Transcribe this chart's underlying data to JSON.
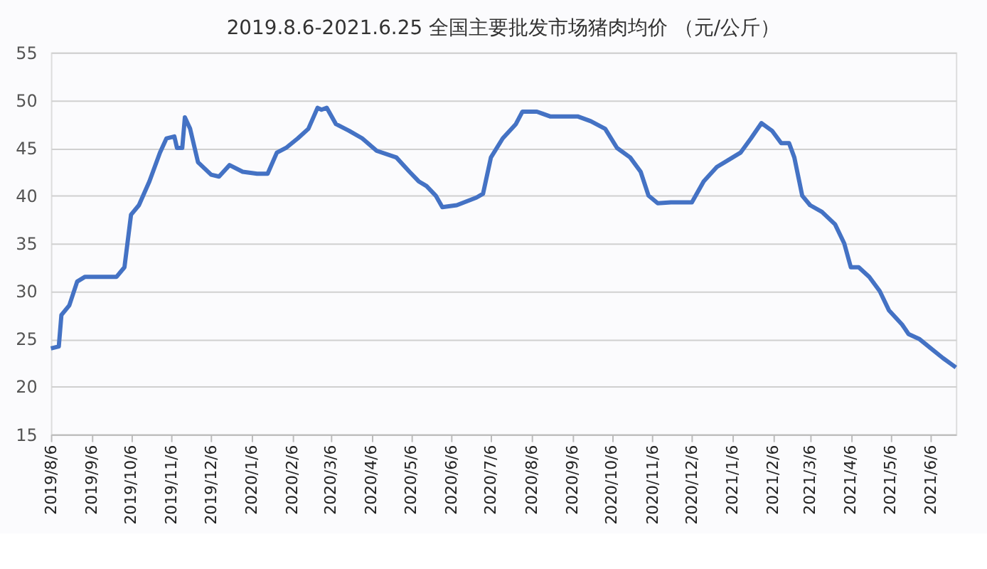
{
  "chart_data": {
    "type": "line",
    "title": "2019.8.6-2021.6.25 全国主要批发市场猪肉均价 （元/公斤）",
    "x": [
      "2019-08-06",
      "2019-08-12",
      "2019-08-14",
      "2019-08-20",
      "2019-08-26",
      "2019-09-01",
      "2019-09-25",
      "2019-10-01",
      "2019-10-06",
      "2019-10-12",
      "2019-10-20",
      "2019-10-28",
      "2019-11-02",
      "2019-11-08",
      "2019-11-10",
      "2019-11-14",
      "2019-11-16",
      "2019-11-20",
      "2019-11-26",
      "2019-12-06",
      "2019-12-12",
      "2019-12-20",
      "2019-12-30",
      "2020-01-10",
      "2020-01-18",
      "2020-01-25",
      "2020-02-01",
      "2020-02-10",
      "2020-02-18",
      "2020-02-25",
      "2020-02-28",
      "2020-03-03",
      "2020-03-10",
      "2020-03-20",
      "2020-03-30",
      "2020-04-10",
      "2020-04-25",
      "2020-05-05",
      "2020-05-12",
      "2020-05-18",
      "2020-05-25",
      "2020-05-30",
      "2020-06-10",
      "2020-06-25",
      "2020-06-30",
      "2020-07-06",
      "2020-07-15",
      "2020-07-25",
      "2020-07-30",
      "2020-08-10",
      "2020-08-20",
      "2020-08-30",
      "2020-09-10",
      "2020-09-20",
      "2020-10-01",
      "2020-10-10",
      "2020-10-20",
      "2020-10-28",
      "2020-11-03",
      "2020-11-10",
      "2020-11-20",
      "2020-12-01",
      "2020-12-06",
      "2020-12-15",
      "2020-12-25",
      "2021-01-06",
      "2021-01-12",
      "2021-01-20",
      "2021-01-28",
      "2021-02-05",
      "2021-02-12",
      "2021-02-18",
      "2021-02-22",
      "2021-02-28",
      "2021-03-06",
      "2021-03-15",
      "2021-03-25",
      "2021-04-01",
      "2021-04-06",
      "2021-04-12",
      "2021-04-20",
      "2021-04-28",
      "2021-05-05",
      "2021-05-15",
      "2021-05-20",
      "2021-05-28",
      "2021-06-06",
      "2021-06-15",
      "2021-06-25"
    ],
    "series": [
      {
        "color": "#4472c4",
        "values": [
          24,
          24.2,
          27.5,
          28.5,
          31,
          31.5,
          31.5,
          32.5,
          38,
          39,
          41.5,
          44.5,
          46,
          46.2,
          45,
          45,
          48.2,
          47,
          43.5,
          42.2,
          42,
          43.2,
          42.5,
          42.3,
          42.3,
          44.5,
          45,
          46,
          47,
          49.2,
          49,
          49.2,
          47.5,
          46.8,
          46,
          44.7,
          44,
          42.5,
          41.5,
          41,
          40,
          38.8,
          39,
          39.8,
          40.2,
          44,
          46,
          47.5,
          48.8,
          48.8,
          48.3,
          48.3,
          48.3,
          47.8,
          47,
          45,
          44,
          42.5,
          40,
          39.2,
          39.3,
          39.3,
          39.3,
          41.5,
          43,
          44,
          44.5,
          46,
          47.6,
          46.8,
          45.5,
          45.5,
          44,
          40,
          39,
          38.3,
          37,
          35,
          32.5,
          32.5,
          31.5,
          30,
          28,
          26.5,
          25.5,
          25,
          24,
          23,
          22
        ]
      }
    ],
    "xlim": [
      "2019-08-06",
      "2021-06-25"
    ],
    "xticks": [
      {
        "value": "2019-08-06",
        "label": "2019/8/6"
      },
      {
        "value": "2019-09-06",
        "label": "2019/9/6"
      },
      {
        "value": "2019-10-06",
        "label": "2019/10/6"
      },
      {
        "value": "2019-11-06",
        "label": "2019/11/6"
      },
      {
        "value": "2019-12-06",
        "label": "2019/12/6"
      },
      {
        "value": "2020-01-06",
        "label": "2020/1/6"
      },
      {
        "value": "2020-02-06",
        "label": "2020/2/6"
      },
      {
        "value": "2020-03-06",
        "label": "2020/3/6"
      },
      {
        "value": "2020-04-06",
        "label": "2020/4/6"
      },
      {
        "value": "2020-05-06",
        "label": "2020/5/6"
      },
      {
        "value": "2020-06-06",
        "label": "2020/6/6"
      },
      {
        "value": "2020-07-06",
        "label": "2020/7/6"
      },
      {
        "value": "2020-08-06",
        "label": "2020/8/6"
      },
      {
        "value": "2020-09-06",
        "label": "2020/9/6"
      },
      {
        "value": "2020-10-06",
        "label": "2020/10/6"
      },
      {
        "value": "2020-11-06",
        "label": "2020/11/6"
      },
      {
        "value": "2020-12-06",
        "label": "2020/12/6"
      },
      {
        "value": "2021-01-06",
        "label": "2021/1/6"
      },
      {
        "value": "2021-02-06",
        "label": "2021/2/6"
      },
      {
        "value": "2021-03-06",
        "label": "2021/3/6"
      },
      {
        "value": "2021-04-06",
        "label": "2021/4/6"
      },
      {
        "value": "2021-05-06",
        "label": "2021/5/6"
      },
      {
        "value": "2021-06-06",
        "label": "2021/6/6"
      }
    ],
    "ylim": [
      15,
      55
    ],
    "yticks": [
      15,
      20,
      25,
      30,
      35,
      40,
      45,
      50,
      55
    ],
    "grid": "y",
    "marker": "none",
    "line_style": "solid",
    "legend": false
  }
}
